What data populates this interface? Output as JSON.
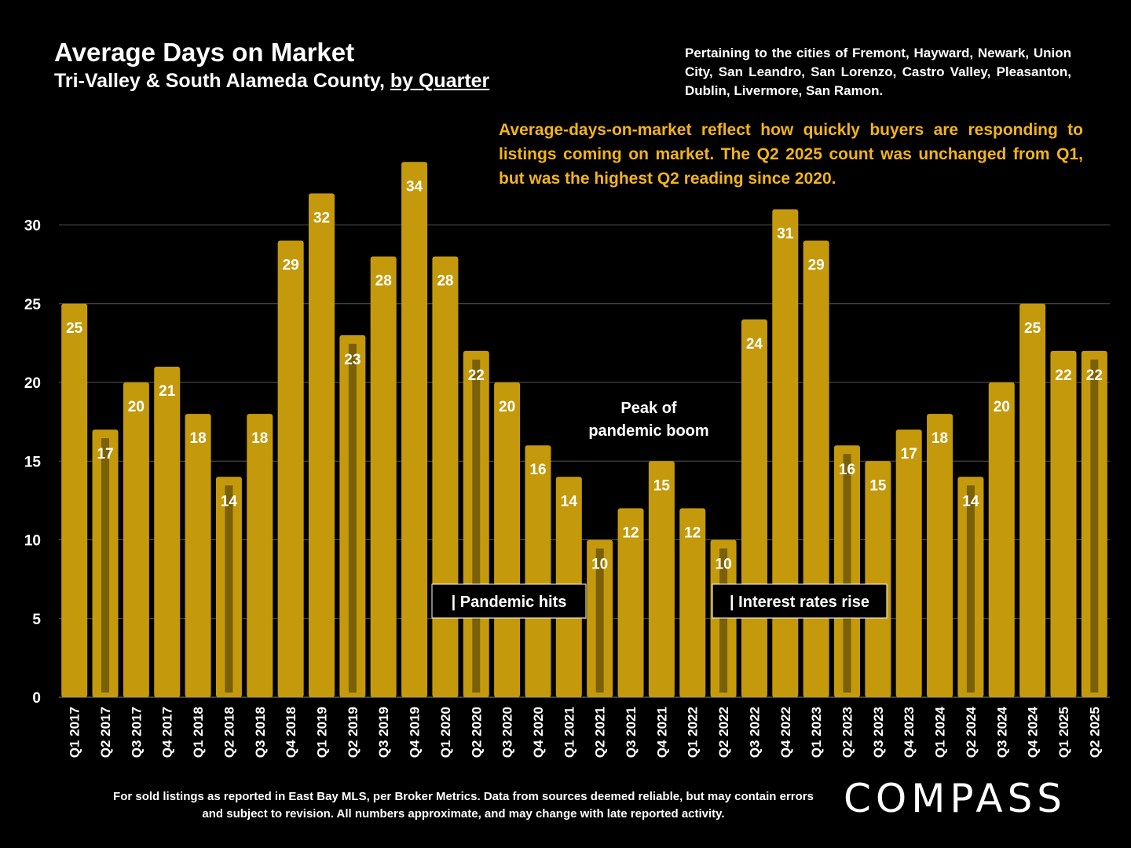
{
  "header": {
    "title": "Average Days on Market",
    "subtitle_main": "Tri-Valley & South Alameda County, ",
    "subtitle_link": "by Quarter",
    "pertaining": "Pertaining to the cities of Fremont, Hayward, Newark, Union City, San Leandro, San Lorenzo, Castro Valley, Pleasanton, Dublin, Livermore, San Ramon.",
    "note": "Average-days-on-market reflect how quickly buyers are responding to listings coming on market. The Q2 2025 count was unchanged from Q1, but was the highest Q2 reading since 2020."
  },
  "footer": {
    "text": "For sold listings as reported in East Bay MLS, per Broker Metrics. Data from sources deemed reliable, but may contain errors and subject to revision. All numbers approximate, and may change with late reported activity.",
    "logo": "COMPASS"
  },
  "colors": {
    "bar": "#c49a0c",
    "q2_marker": "#7a6008",
    "note": "#f2b418",
    "background": "#000000"
  },
  "chart_data": {
    "type": "bar",
    "categories": [
      "Q1 2017",
      "Q2 2017",
      "Q3 2017",
      "Q4 2017",
      "Q1 2018",
      "Q2 2018",
      "Q3 2018",
      "Q4 2018",
      "Q1 2019",
      "Q2 2019",
      "Q3 2019",
      "Q4 2019",
      "Q1 2020",
      "Q2 2020",
      "Q3 2020",
      "Q4 2020",
      "Q1 2021",
      "Q2 2021",
      "Q3 2021",
      "Q4 2021",
      "Q1 2022",
      "Q2 2022",
      "Q3 2022",
      "Q4 2022",
      "Q1 2023",
      "Q2 2023",
      "Q3 2023",
      "Q4 2023",
      "Q1 2024",
      "Q2 2024",
      "Q3 2024",
      "Q4 2024",
      "Q1 2025",
      "Q2 2025"
    ],
    "values": [
      25,
      17,
      20,
      21,
      18,
      14,
      18,
      29,
      32,
      23,
      28,
      34,
      28,
      22,
      20,
      16,
      14,
      10,
      12,
      15,
      12,
      10,
      24,
      31,
      29,
      16,
      15,
      17,
      18,
      14,
      20,
      25,
      22,
      22
    ],
    "labels": [
      "25",
      "17",
      "20",
      "21",
      "18",
      "14",
      "18",
      "29",
      "32",
      "23",
      "28",
      "34",
      "28",
      "22",
      "20",
      "16",
      "14",
      "10",
      "12",
      "15",
      "12",
      "10",
      "24",
      "31",
      "29",
      "16",
      "15",
      "17",
      "18",
      "14",
      "20",
      "25",
      "22",
      "22"
    ],
    "ylim": [
      0,
      34
    ],
    "yticks": [
      0,
      5,
      10,
      15,
      20,
      25,
      30
    ],
    "grid": true,
    "q2_marker": "darker stripe inside each Q2 bar",
    "annotations": [
      {
        "text": "Peak of pandemic boom",
        "lines": [
          "Peak of",
          "pandemic boom"
        ]
      },
      {
        "text": "| Pandemic hits",
        "boxed": true
      },
      {
        "text": "| Interest rates rise",
        "boxed": true
      }
    ]
  }
}
